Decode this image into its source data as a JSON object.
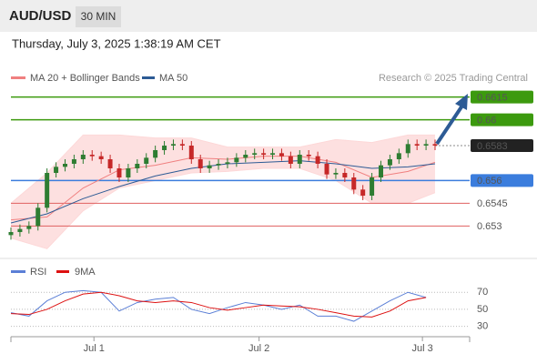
{
  "header": {
    "symbol": "AUD/USD",
    "timeframe": "30 MIN",
    "timestamp": "Thursday, July 3, 2025 1:38:19 AM CET"
  },
  "chart_data": [
    {
      "type": "candlestick",
      "source": "Research © 2025 Trading Central",
      "up_color": "#2e7d32",
      "down_color": "#c62828",
      "ylim": [
        0.6514,
        0.6622
      ],
      "open": [
        0.6524,
        0.6526,
        0.6528,
        0.653,
        0.6542,
        0.6565,
        0.6569,
        0.6571,
        0.6574,
        0.6577,
        0.6576,
        0.6574,
        0.6568,
        0.6562,
        0.6568,
        0.6571,
        0.6575,
        0.658,
        0.6583,
        0.6584,
        0.6583,
        0.6574,
        0.6568,
        0.657,
        0.6571,
        0.6572,
        0.6575,
        0.6577,
        0.6578,
        0.6577,
        0.6578,
        0.6576,
        0.6571,
        0.6577,
        0.6576,
        0.6571,
        0.6564,
        0.6565,
        0.6562,
        0.6554,
        0.655,
        0.6562,
        0.657,
        0.6574,
        0.6578,
        0.6584,
        0.6583,
        0.6584
      ],
      "high": [
        0.6529,
        0.6531,
        0.6533,
        0.6545,
        0.6568,
        0.6572,
        0.6574,
        0.6577,
        0.658,
        0.658,
        0.6579,
        0.6577,
        0.6571,
        0.6571,
        0.6574,
        0.6578,
        0.6583,
        0.6586,
        0.6587,
        0.6587,
        0.6586,
        0.6577,
        0.6573,
        0.6574,
        0.6575,
        0.6578,
        0.658,
        0.6581,
        0.6581,
        0.6581,
        0.6581,
        0.6579,
        0.658,
        0.658,
        0.6579,
        0.6574,
        0.6568,
        0.6568,
        0.6565,
        0.6557,
        0.6565,
        0.6573,
        0.6577,
        0.6581,
        0.6587,
        0.6587,
        0.6587,
        0.6587
      ],
      "low": [
        0.6521,
        0.6523,
        0.6525,
        0.6527,
        0.6539,
        0.6562,
        0.6566,
        0.6568,
        0.6571,
        0.6573,
        0.6571,
        0.6565,
        0.6559,
        0.6559,
        0.6565,
        0.6568,
        0.6572,
        0.6577,
        0.658,
        0.658,
        0.6571,
        0.6565,
        0.6565,
        0.6567,
        0.6568,
        0.6569,
        0.6572,
        0.6574,
        0.6574,
        0.6574,
        0.6573,
        0.6568,
        0.6568,
        0.6573,
        0.6568,
        0.6561,
        0.6561,
        0.6559,
        0.6551,
        0.6547,
        0.6547,
        0.6559,
        0.6567,
        0.6571,
        0.6575,
        0.658,
        0.658,
        0.658
      ],
      "close": [
        0.6526,
        0.6528,
        0.653,
        0.6542,
        0.6565,
        0.6569,
        0.6571,
        0.6574,
        0.6577,
        0.6576,
        0.6574,
        0.6568,
        0.6562,
        0.6568,
        0.6571,
        0.6575,
        0.658,
        0.6583,
        0.6584,
        0.6583,
        0.6574,
        0.6568,
        0.657,
        0.6571,
        0.6572,
        0.6575,
        0.6577,
        0.6578,
        0.6577,
        0.6578,
        0.6576,
        0.6571,
        0.6577,
        0.6576,
        0.6571,
        0.6564,
        0.6565,
        0.6562,
        0.6554,
        0.655,
        0.6562,
        0.657,
        0.6574,
        0.6578,
        0.6584,
        0.6583,
        0.6584,
        0.6583
      ],
      "series": [
        {
          "name": "MA 20 + Bollinger Bands",
          "color": "#f08080",
          "band_color": "#fdd8d8",
          "x": [
            0,
            4,
            8,
            12,
            16,
            20,
            24,
            28,
            32,
            36,
            40,
            44,
            47
          ],
          "values": [
            0.6534,
            0.6536,
            0.6555,
            0.6567,
            0.657,
            0.6575,
            0.6574,
            0.6576,
            0.6576,
            0.6572,
            0.6562,
            0.6566,
            0.6572
          ],
          "upper": [
            0.6545,
            0.6565,
            0.659,
            0.659,
            0.6588,
            0.6588,
            0.6582,
            0.6582,
            0.6582,
            0.6587,
            0.6585,
            0.659,
            0.659
          ],
          "lower": [
            0.6522,
            0.6515,
            0.654,
            0.6555,
            0.656,
            0.6565,
            0.6566,
            0.6568,
            0.6568,
            0.656,
            0.6545,
            0.6545,
            0.6552
          ]
        },
        {
          "name": "MA 50",
          "color": "#2d5b95",
          "x": [
            0,
            4,
            8,
            12,
            16,
            20,
            24,
            28,
            32,
            36,
            40,
            44,
            47
          ],
          "values": [
            0.6532,
            0.6538,
            0.6548,
            0.6556,
            0.6563,
            0.6568,
            0.6571,
            0.6572,
            0.6573,
            0.6571,
            0.6568,
            0.6569,
            0.6571
          ]
        }
      ],
      "levels": [
        {
          "value": 0.6615,
          "color": "#3c9a0e"
        },
        {
          "value": 0.66,
          "color": "#3c9a0e"
        },
        {
          "value": 0.6583,
          "color": "#222222",
          "style": "dotted"
        },
        {
          "value": 0.656,
          "color": "#3b7ddd"
        },
        {
          "value": 0.6545,
          "color": "#e06060",
          "style": "text"
        },
        {
          "value": 0.653,
          "color": "#e06060",
          "style": "text"
        }
      ]
    },
    {
      "type": "line",
      "ylim": [
        20,
        82
      ],
      "yticks": [
        30,
        50,
        70
      ],
      "x": [
        0,
        2,
        4,
        6,
        8,
        10,
        12,
        14,
        16,
        18,
        20,
        22,
        24,
        26,
        28,
        30,
        32,
        34,
        36,
        38,
        40,
        42,
        44,
        46
      ],
      "xticks": [
        {
          "value": 9.2,
          "label": "Jul 1"
        },
        {
          "value": 27.5,
          "label": "Jul 2"
        },
        {
          "value": 45.6,
          "label": "Jul 3"
        }
      ],
      "series": [
        {
          "name": "RSI",
          "color": "#5b7fd6",
          "values": [
            46,
            42,
            60,
            70,
            72,
            70,
            48,
            58,
            62,
            64,
            50,
            45,
            52,
            58,
            55,
            50,
            55,
            42,
            42,
            36,
            48,
            60,
            70,
            64
          ]
        },
        {
          "name": "9MA",
          "color": "#dd1111",
          "values": [
            45,
            44,
            50,
            60,
            68,
            70,
            66,
            60,
            58,
            60,
            58,
            52,
            49,
            52,
            55,
            54,
            53,
            50,
            46,
            42,
            41,
            48,
            60,
            64
          ]
        }
      ]
    }
  ]
}
